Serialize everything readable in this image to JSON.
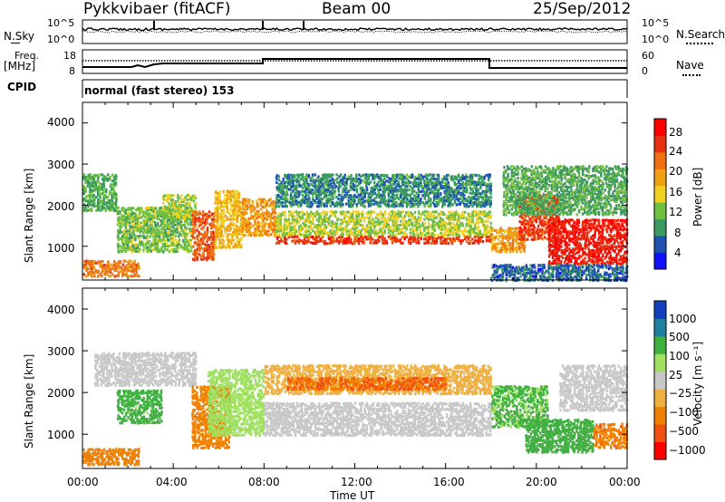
{
  "header": {
    "station": "Pykkvibaer (fitACF)",
    "beam": "Beam 00",
    "date": "25/Sep/2012"
  },
  "nsky_panel": {
    "left_label": "N.Sky",
    "left_ticks": [
      "10^5",
      "10^0"
    ],
    "right_ticks": [
      "10^5",
      "10^0"
    ],
    "right_label": "N.Search"
  },
  "freq_panel": {
    "left_label_top": "Freq.",
    "left_label_bottom": "[MHz]",
    "left_ticks": [
      "18",
      "8"
    ],
    "right_ticks": [
      "60",
      "0"
    ],
    "right_label": "Nave"
  },
  "cpid_panel": {
    "label": "CPID",
    "value": "normal (fast stereo) 153"
  },
  "chart_data": [
    {
      "type": "heatmap",
      "name": "power",
      "ylabel": "Slant Range [km]",
      "yticks": [
        "4000",
        "3000",
        "2000",
        "1000"
      ],
      "ylim": [
        180,
        4500
      ],
      "colorbar": {
        "label": "Power [dB]",
        "ticks": [
          "28",
          "24",
          "20",
          "16",
          "12",
          "8",
          "4"
        ],
        "colors": [
          "#1010ff",
          "#2050b0",
          "#3a9a60",
          "#70c040",
          "#f0d020",
          "#f0a010",
          "#f07010",
          "#e83010",
          "#ff0000"
        ]
      },
      "bands": [
        {
          "x": [
            0.0,
            2.5
          ],
          "r": [
            300,
            700
          ],
          "value": 22
        },
        {
          "x": [
            0.0,
            1.5
          ],
          "r": [
            1900,
            2800
          ],
          "value": 10
        },
        {
          "x": [
            1.5,
            4.8
          ],
          "r": [
            900,
            2000
          ],
          "value": 12
        },
        {
          "x": [
            3.5,
            5.0
          ],
          "r": [
            1700,
            2300
          ],
          "value": 14
        },
        {
          "x": [
            4.8,
            5.8
          ],
          "r": [
            700,
            1900
          ],
          "value": 24
        },
        {
          "x": [
            5.8,
            7.0
          ],
          "r": [
            1000,
            2400
          ],
          "value": 18
        },
        {
          "x": [
            7.0,
            8.5
          ],
          "r": [
            1300,
            2200
          ],
          "value": 20
        },
        {
          "x": [
            8.5,
            18.0
          ],
          "r": [
            1100,
            1300
          ],
          "value": 26
        },
        {
          "x": [
            8.5,
            18.0
          ],
          "r": [
            1300,
            1900
          ],
          "value": 14
        },
        {
          "x": [
            8.5,
            18.0
          ],
          "r": [
            2000,
            2800
          ],
          "value": 8
        },
        {
          "x": [
            18.0,
            19.5
          ],
          "r": [
            900,
            1500
          ],
          "value": 20
        },
        {
          "x": [
            19.2,
            21.0
          ],
          "r": [
            1200,
            2300
          ],
          "value": 26
        },
        {
          "x": [
            20.5,
            24.0
          ],
          "r": [
            600,
            1700
          ],
          "value": 28
        },
        {
          "x": [
            18.5,
            24.0
          ],
          "r": [
            1800,
            3000
          ],
          "value": 10
        },
        {
          "x": [
            18.0,
            24.0
          ],
          "r": [
            200,
            600
          ],
          "value": 6
        }
      ]
    },
    {
      "type": "heatmap",
      "name": "velocity",
      "ylabel": "Slant Range [km]",
      "yticks": [
        "4000",
        "3000",
        "2000",
        "1000"
      ],
      "ylim": [
        180,
        4500
      ],
      "xlabel": "Time UT",
      "xticks": [
        "00:00",
        "04:00",
        "08:00",
        "12:00",
        "16:00",
        "20:00",
        "00:00"
      ],
      "xlim": [
        0,
        24
      ],
      "colorbar": {
        "label": "Velocity [m s⁻¹]",
        "ticks": [
          "1000",
          "500",
          "100",
          "25",
          "−25",
          "−100",
          "−500",
          "−1000"
        ],
        "colors": [
          "#ff0000",
          "#f05010",
          "#f08000",
          "#f0b040",
          "#c8c8c8",
          "#a0e060",
          "#40b040",
          "#2080a0",
          "#1040c0"
        ]
      },
      "bands": [
        {
          "x": [
            0.0,
            2.5
          ],
          "r": [
            300,
            700
          ],
          "value": -300
        },
        {
          "x": [
            0.5,
            5.0
          ],
          "r": [
            2200,
            3000
          ],
          "value": 0
        },
        {
          "x": [
            1.5,
            3.5
          ],
          "r": [
            1300,
            2100
          ],
          "value": 150
        },
        {
          "x": [
            4.8,
            6.5
          ],
          "r": [
            700,
            2200
          ],
          "value": -250
        },
        {
          "x": [
            5.5,
            8.0
          ],
          "r": [
            1000,
            2600
          ],
          "value": 60
        },
        {
          "x": [
            8.0,
            18.0
          ],
          "r": [
            1000,
            1800
          ],
          "value": 0
        },
        {
          "x": [
            8.0,
            18.0
          ],
          "r": [
            2000,
            2700
          ],
          "value": -60
        },
        {
          "x": [
            9.0,
            16.0
          ],
          "r": [
            2100,
            2400
          ],
          "value": -500
        },
        {
          "x": [
            18.0,
            20.5
          ],
          "r": [
            1200,
            2200
          ],
          "value": 120
        },
        {
          "x": [
            19.5,
            22.5
          ],
          "r": [
            600,
            1400
          ],
          "value": 200
        },
        {
          "x": [
            21.0,
            24.0
          ],
          "r": [
            1600,
            2700
          ],
          "value": 0
        },
        {
          "x": [
            22.5,
            24.0
          ],
          "r": [
            700,
            1300
          ],
          "value": -400
        }
      ]
    }
  ]
}
